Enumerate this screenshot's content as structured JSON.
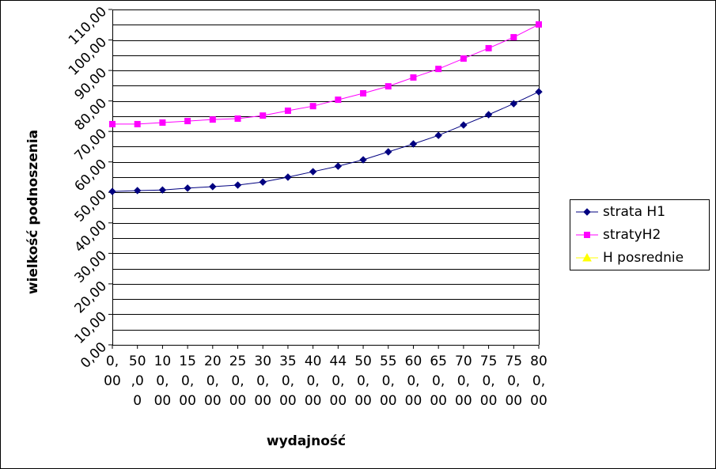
{
  "chart_data": {
    "type": "line",
    "y_label": "wielkość podnoszenia",
    "x_label": "wydajność",
    "categories": [
      "0,00",
      "50,00",
      "100,00",
      "150,00",
      "200,00",
      "250,00",
      "300,00",
      "350,00",
      "400,00",
      "440,00",
      "500,00",
      "550,00",
      "600,00",
      "650,00",
      "700,00",
      "750,00",
      "750,00",
      "800,00"
    ],
    "series": [
      {
        "name": "strata H1",
        "color": "#000080",
        "marker": "diamond",
        "values": [
          50.3,
          50.6,
          50.8,
          51.4,
          51.9,
          52.4,
          53.4,
          55.0,
          56.8,
          58.6,
          60.7,
          63.3,
          65.9,
          68.7,
          72.1,
          75.5,
          79.1,
          83.0
        ]
      },
      {
        "name": "stratyH2",
        "color": "#ff00ff",
        "marker": "square",
        "values": [
          72.4,
          72.4,
          72.9,
          73.4,
          73.9,
          74.2,
          75.2,
          76.8,
          78.3,
          80.4,
          82.5,
          84.8,
          87.7,
          90.5,
          93.9,
          97.3,
          100.9,
          105.1
        ]
      },
      {
        "name": "H posrednie",
        "color": "#ffff00",
        "marker": "triangle",
        "values": [
          null,
          null,
          null,
          null,
          null,
          null,
          null,
          null,
          null,
          null,
          null,
          null,
          null,
          null,
          null,
          null,
          null,
          null
        ]
      }
    ],
    "ylim": [
      0,
      110
    ],
    "yticks": [
      {
        "value": 0,
        "label": "0,00"
      },
      {
        "value": 10,
        "label": "10,00"
      },
      {
        "value": 20,
        "label": "20,00"
      },
      {
        "value": 30,
        "label": "30,00"
      },
      {
        "value": 40,
        "label": "40,00"
      },
      {
        "value": 50,
        "label": "50,00"
      },
      {
        "value": 60,
        "label": "60,00"
      },
      {
        "value": 70,
        "label": "70,00"
      },
      {
        "value": 80,
        "label": "80,00"
      },
      {
        "value": 90,
        "label": "90,00"
      },
      {
        "value": 100,
        "label": "100,00"
      },
      {
        "value": 110,
        "label": "110,00"
      }
    ],
    "ygrid": [
      0,
      5,
      10,
      15,
      20,
      25,
      30,
      35,
      40,
      45,
      50,
      55,
      60,
      65,
      70,
      75,
      80,
      85,
      90,
      95,
      100,
      105,
      110
    ],
    "legend": "right"
  }
}
